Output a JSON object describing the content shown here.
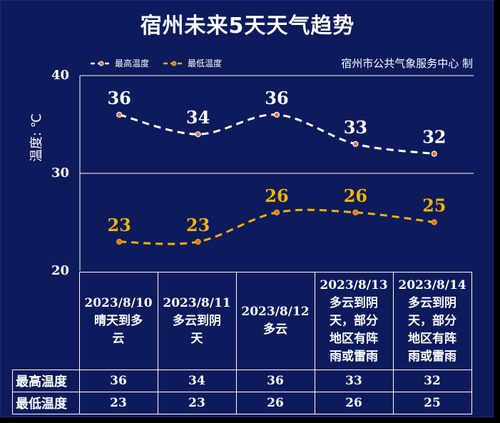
{
  "title": "宿州未来5天天气趋势",
  "credit": "宿州市公共气象服务中心 制",
  "colors": {
    "background": "#0d1b5c",
    "high": "#ffffff",
    "low": "#f2b400",
    "marker": "#e07040"
  },
  "chart_data": {
    "type": "line",
    "title": "宿州未来5天天气趋势",
    "ylabel": "温度: ℃",
    "ylim": [
      20,
      40
    ],
    "yticks": [
      "20",
      "30",
      "40"
    ],
    "categories": [
      "2023/8/10",
      "2023/8/11",
      "2023/8/12",
      "2023/8/13",
      "2023/8/14"
    ],
    "series": [
      {
        "name": "最高温度",
        "values": [
          36,
          34,
          36,
          33,
          32
        ],
        "labels": [
          "36",
          "34",
          "36",
          "33",
          "32"
        ]
      },
      {
        "name": "最低温度",
        "values": [
          23,
          23,
          26,
          26,
          25
        ],
        "labels": [
          "23",
          "23",
          "26",
          "26",
          "25"
        ]
      }
    ],
    "weather": [
      [
        "2023/8/10",
        "晴天到多",
        "云"
      ],
      [
        "2023/8/11",
        "多云到阴",
        "天"
      ],
      [
        "2023/8/12",
        "多云"
      ],
      [
        "2023/8/13",
        "多云到阴",
        "天，部分",
        "地区有阵",
        "雨或雷雨"
      ],
      [
        "2023/8/14",
        "多云到阴",
        "天，部分",
        "地区有阵",
        "雨或雷雨"
      ]
    ],
    "table_rows": [
      {
        "label": "最高温度",
        "values": [
          "36",
          "34",
          "36",
          "33",
          "32"
        ]
      },
      {
        "label": "最低温度",
        "values": [
          "23",
          "23",
          "26",
          "26",
          "25"
        ]
      }
    ],
    "grid": true,
    "legend_position": "top-left"
  }
}
